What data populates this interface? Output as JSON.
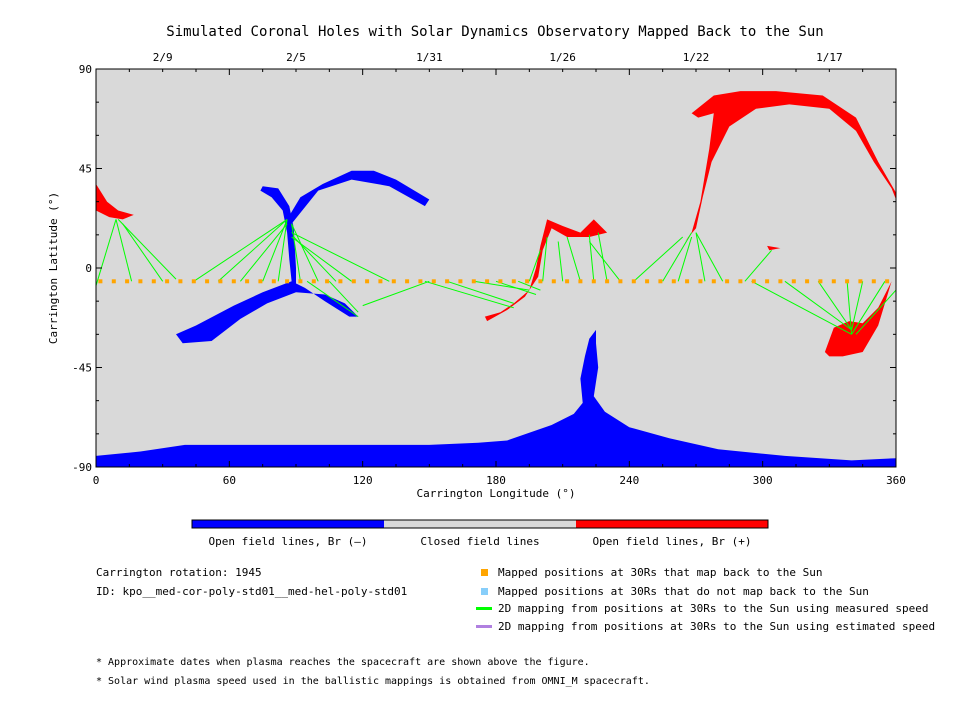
{
  "chart_data": {
    "type": "map",
    "title": "Simulated Coronal Holes with Solar Dynamics Observatory Mapped Back to the Sun",
    "xlabel": "Carrington Longitude (°)",
    "ylabel": "Carrington Latitude (°)",
    "xlim": [
      0,
      360
    ],
    "ylim": [
      -90,
      90
    ],
    "x_ticks": [
      0,
      60,
      120,
      180,
      240,
      300,
      360
    ],
    "y_ticks": [
      -90,
      -45,
      0,
      45,
      90
    ],
    "top_axis_dates": [
      {
        "label": "2/9",
        "lon": 30
      },
      {
        "label": "2/5",
        "lon": 90
      },
      {
        "label": "1/31",
        "lon": 150
      },
      {
        "label": "1/26",
        "lon": 210
      },
      {
        "label": "1/22",
        "lon": 270
      },
      {
        "label": "1/17",
        "lon": 330
      }
    ],
    "colors": {
      "background": "#d9d9d9",
      "open_negative": "#0000ff",
      "closed": "#d9d9d9",
      "open_positive": "#ff0000",
      "mapped_back": "#ffa500",
      "not_mapped": "#87cefa",
      "measured_speed": "#00ff00",
      "estimated_speed": "#b080e0"
    },
    "coronal_holes": [
      {
        "polarity": "positive",
        "outline": [
          [
            0,
            38
          ],
          [
            5,
            30
          ],
          [
            10,
            26
          ],
          [
            17,
            24
          ],
          [
            12,
            22
          ],
          [
            6,
            23
          ],
          [
            0,
            26
          ]
        ]
      },
      {
        "polarity": "negative",
        "outline": [
          [
            75,
            37
          ],
          [
            82,
            36
          ],
          [
            87,
            28
          ],
          [
            89,
            18
          ],
          [
            90,
            0
          ],
          [
            90,
            -8
          ],
          [
            88,
            -6
          ],
          [
            87,
            4
          ],
          [
            86,
            16
          ],
          [
            84,
            26
          ],
          [
            79,
            32
          ],
          [
            74,
            35
          ]
        ]
      },
      {
        "polarity": "negative",
        "outline": [
          [
            86,
            22
          ],
          [
            92,
            32
          ],
          [
            102,
            38
          ],
          [
            115,
            44
          ],
          [
            125,
            44
          ],
          [
            135,
            40
          ],
          [
            150,
            31
          ],
          [
            148,
            28
          ],
          [
            132,
            37
          ],
          [
            115,
            40
          ],
          [
            100,
            35
          ],
          [
            88,
            20
          ]
        ]
      },
      {
        "polarity": "negative",
        "outline": [
          [
            88,
            -6
          ],
          [
            75,
            -11
          ],
          [
            62,
            -17
          ],
          [
            45,
            -26
          ],
          [
            36,
            -30
          ],
          [
            39,
            -34
          ],
          [
            52,
            -33
          ],
          [
            65,
            -23
          ],
          [
            77,
            -16
          ],
          [
            90,
            -11
          ],
          [
            103,
            -12
          ],
          [
            112,
            -16
          ],
          [
            118,
            -22
          ],
          [
            114,
            -22
          ],
          [
            103,
            -15
          ],
          [
            94,
            -9
          ]
        ]
      },
      {
        "polarity": "positive",
        "outline": [
          [
            175,
            -22
          ],
          [
            182,
            -20
          ],
          [
            188,
            -16
          ],
          [
            195,
            -10
          ],
          [
            198,
            0
          ],
          [
            200,
            10
          ],
          [
            203,
            22
          ],
          [
            210,
            19
          ],
          [
            218,
            16
          ],
          [
            224,
            22
          ],
          [
            230,
            16
          ],
          [
            222,
            14
          ],
          [
            212,
            14
          ],
          [
            205,
            18
          ],
          [
            201,
            8
          ],
          [
            199,
            -4
          ],
          [
            193,
            -13
          ],
          [
            185,
            -19
          ],
          [
            176,
            -24
          ]
        ]
      },
      {
        "polarity": "positive",
        "outline": [
          [
            265,
            12
          ],
          [
            270,
            18
          ],
          [
            273,
            32
          ],
          [
            277,
            48
          ],
          [
            285,
            64
          ],
          [
            297,
            72
          ],
          [
            312,
            74
          ],
          [
            330,
            72
          ],
          [
            342,
            62
          ],
          [
            350,
            48
          ],
          [
            358,
            36
          ],
          [
            360,
            31
          ],
          [
            360,
            34
          ],
          [
            352,
            48
          ],
          [
            342,
            68
          ],
          [
            327,
            78
          ],
          [
            306,
            80
          ],
          [
            290,
            80
          ],
          [
            278,
            78
          ],
          [
            268,
            70
          ],
          [
            271,
            68
          ],
          [
            278,
            70
          ],
          [
            276,
            54
          ],
          [
            272,
            30
          ],
          [
            268,
            16
          ]
        ]
      },
      {
        "polarity": "positive",
        "outline": [
          [
            302,
            10
          ],
          [
            308,
            9
          ],
          [
            303,
            8
          ]
        ]
      },
      {
        "polarity": "positive",
        "outline": [
          [
            328,
            -38
          ],
          [
            332,
            -27
          ],
          [
            339,
            -24
          ],
          [
            345,
            -25
          ],
          [
            352,
            -18
          ],
          [
            358,
            -6
          ],
          [
            352,
            -26
          ],
          [
            345,
            -38
          ],
          [
            336,
            -40
          ],
          [
            330,
            -40
          ]
        ]
      },
      {
        "polarity": "negative",
        "outline": [
          [
            0,
            -90
          ],
          [
            0,
            -85
          ],
          [
            20,
            -83
          ],
          [
            40,
            -80
          ],
          [
            60,
            -80
          ],
          [
            90,
            -80
          ],
          [
            120,
            -80
          ],
          [
            150,
            -80
          ],
          [
            172,
            -79
          ],
          [
            185,
            -78
          ],
          [
            205,
            -71
          ],
          [
            215,
            -66
          ],
          [
            219,
            -61
          ],
          [
            218,
            -50
          ],
          [
            220,
            -40
          ],
          [
            222,
            -32
          ],
          [
            225,
            -28
          ],
          [
            225,
            -34
          ],
          [
            226,
            -45
          ],
          [
            224,
            -58
          ],
          [
            229,
            -65
          ],
          [
            240,
            -72
          ],
          [
            258,
            -77
          ],
          [
            280,
            -82
          ],
          [
            310,
            -85
          ],
          [
            340,
            -87
          ],
          [
            360,
            -86
          ],
          [
            360,
            -90
          ]
        ]
      }
    ],
    "mapped_points_lon": [
      2,
      8,
      14,
      20,
      26,
      32,
      38,
      44,
      50,
      56,
      62,
      68,
      74,
      80,
      86,
      92,
      98,
      104,
      110,
      116,
      122,
      128,
      134,
      140,
      146,
      152,
      158,
      164,
      170,
      176,
      182,
      188,
      194,
      200,
      206,
      212,
      218,
      224,
      230,
      236,
      242,
      248,
      254,
      260,
      266,
      272,
      278,
      284,
      290,
      296,
      302,
      308,
      314,
      320,
      326,
      332,
      338,
      344,
      350,
      356
    ],
    "mapped_points_lat": -6,
    "mapping_lines_measured": [
      [
        [
          0,
          -8
        ],
        [
          9,
          22
        ]
      ],
      [
        [
          16,
          -6
        ],
        [
          9,
          22
        ]
      ],
      [
        [
          30,
          -6
        ],
        [
          12,
          20
        ]
      ],
      [
        [
          36,
          -5
        ],
        [
          10,
          22
        ]
      ],
      [
        [
          44,
          -6
        ],
        [
          86,
          22
        ]
      ],
      [
        [
          55,
          -6
        ],
        [
          86,
          22
        ]
      ],
      [
        [
          65,
          -6
        ],
        [
          86,
          20
        ]
      ],
      [
        [
          75,
          -6
        ],
        [
          86,
          22
        ]
      ],
      [
        [
          82,
          -6
        ],
        [
          86,
          22
        ]
      ],
      [
        [
          92,
          -6
        ],
        [
          88,
          20
        ]
      ],
      [
        [
          100,
          -6
        ],
        [
          88,
          20
        ]
      ],
      [
        [
          115,
          -6
        ],
        [
          88,
          14
        ]
      ],
      [
        [
          132,
          -6
        ],
        [
          88,
          16
        ]
      ],
      [
        [
          108,
          -6
        ],
        [
          89,
          14
        ]
      ],
      [
        [
          95,
          -6
        ],
        [
          118,
          -22
        ]
      ],
      [
        [
          105,
          -6
        ],
        [
          118,
          -20
        ]
      ],
      [
        [
          120,
          -17
        ],
        [
          150,
          -6
        ]
      ],
      [
        [
          148,
          -6
        ],
        [
          188,
          -18
        ]
      ],
      [
        [
          158,
          -6
        ],
        [
          188,
          -16
        ]
      ],
      [
        [
          170,
          -6
        ],
        [
          195,
          -10
        ]
      ],
      [
        [
          180,
          -6
        ],
        [
          198,
          -12
        ]
      ],
      [
        [
          190,
          -6
        ],
        [
          200,
          -10
        ]
      ],
      [
        [
          195,
          -6
        ],
        [
          200,
          8
        ]
      ],
      [
        [
          201,
          -6
        ],
        [
          203,
          14
        ]
      ],
      [
        [
          210,
          -6
        ],
        [
          208,
          12
        ]
      ],
      [
        [
          218,
          -6
        ],
        [
          212,
          14
        ]
      ],
      [
        [
          224,
          -6
        ],
        [
          222,
          15
        ]
      ],
      [
        [
          230,
          -6
        ],
        [
          226,
          16
        ]
      ],
      [
        [
          236,
          -6
        ],
        [
          222,
          12
        ]
      ],
      [
        [
          242,
          -6
        ],
        [
          264,
          14
        ]
      ],
      [
        [
          255,
          -6
        ],
        [
          268,
          16
        ]
      ],
      [
        [
          262,
          -6
        ],
        [
          268,
          14
        ]
      ],
      [
        [
          274,
          -6
        ],
        [
          270,
          16
        ]
      ],
      [
        [
          282,
          -6
        ],
        [
          270,
          16
        ]
      ],
      [
        [
          292,
          -6
        ],
        [
          304,
          8
        ]
      ],
      [
        [
          295,
          -6
        ],
        [
          340,
          -30
        ]
      ],
      [
        [
          310,
          -6
        ],
        [
          340,
          -28
        ]
      ],
      [
        [
          325,
          -6
        ],
        [
          340,
          -28
        ]
      ],
      [
        [
          338,
          -6
        ],
        [
          340,
          -30
        ]
      ],
      [
        [
          345,
          -6
        ],
        [
          340,
          -28
        ]
      ],
      [
        [
          355,
          -6
        ],
        [
          340,
          -30
        ]
      ],
      [
        [
          360,
          -10
        ],
        [
          342,
          -30
        ]
      ]
    ],
    "colorbar": {
      "segments": [
        "open_negative",
        "closed",
        "open_positive"
      ],
      "labels": [
        "Open field lines, Br (—)",
        "Closed field lines",
        "Open field lines, Br (+)"
      ]
    }
  },
  "info": {
    "rotation": "Carrington rotation: 1945",
    "id": "ID: kpo__med-cor-poly-std01__med-hel-poly-std01"
  },
  "legend": [
    {
      "marker": "square",
      "color": "#ffa500",
      "label": "Mapped positions at 30Rs that map back to the Sun"
    },
    {
      "marker": "square",
      "color": "#87cefa",
      "label": "Mapped positions at 30Rs that do not map back to the Sun"
    },
    {
      "marker": "line",
      "color": "#00ff00",
      "label": "2D mapping from positions at 30Rs to the Sun using measured speed"
    },
    {
      "marker": "line",
      "color": "#b080e0",
      "label": "2D mapping from positions at 30Rs to the Sun using estimated speed"
    }
  ],
  "footnotes": [
    "* Approximate dates when plasma reaches the spacecraft are shown above the figure.",
    "* Solar wind plasma speed used in the ballistic mappings is obtained from OMNI_M spacecraft."
  ]
}
